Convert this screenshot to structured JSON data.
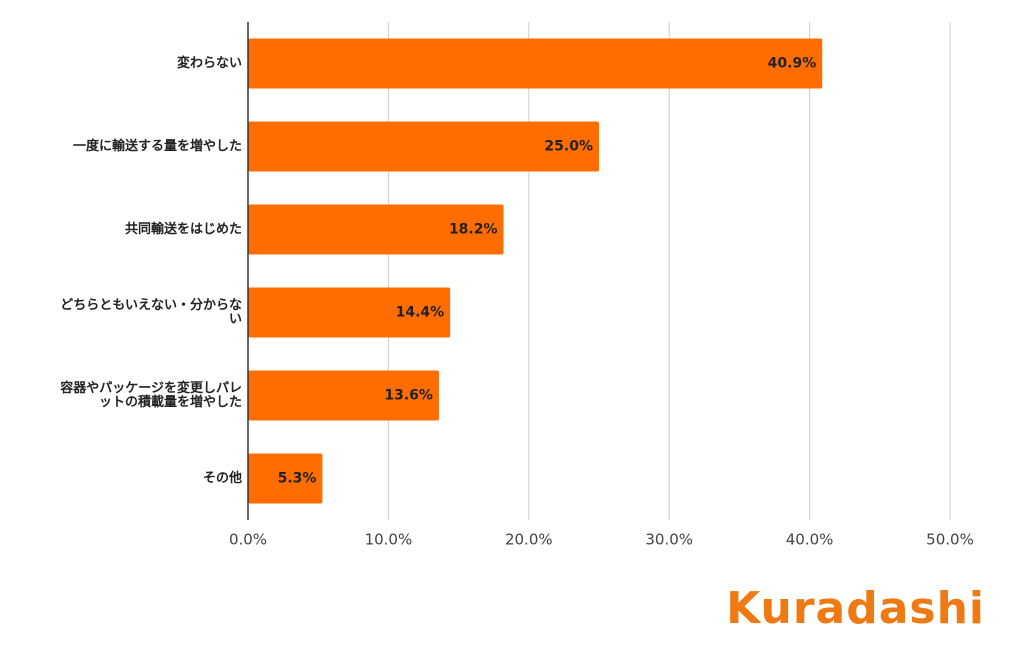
{
  "chart_data": {
    "type": "bar",
    "orientation": "horizontal",
    "categories": [
      "変わらない",
      "一度に輸送する量を増やした",
      "共同輸送をはじめた",
      "どちらともいえない・分からない",
      "容器やパッケージを変更しパレットの積載量を増やした",
      "その他"
    ],
    "values": [
      40.9,
      25.0,
      18.2,
      14.4,
      13.6,
      5.3
    ],
    "value_labels": [
      "40.9%",
      "25.0%",
      "18.2%",
      "14.4%",
      "13.6%",
      "5.3%"
    ],
    "color": "#ff6d01",
    "xlim": [
      0,
      50
    ],
    "xticks": [
      {
        "value": 0,
        "label": "0.0%"
      },
      {
        "value": 10,
        "label": "10.0%"
      },
      {
        "value": 20,
        "label": "20.0%"
      },
      {
        "value": 30,
        "label": "30.0%"
      },
      {
        "value": 40,
        "label": "40.0%"
      },
      {
        "value": 50,
        "label": "50.0%"
      }
    ],
    "grid": true
  },
  "logo": "Kuradashi"
}
